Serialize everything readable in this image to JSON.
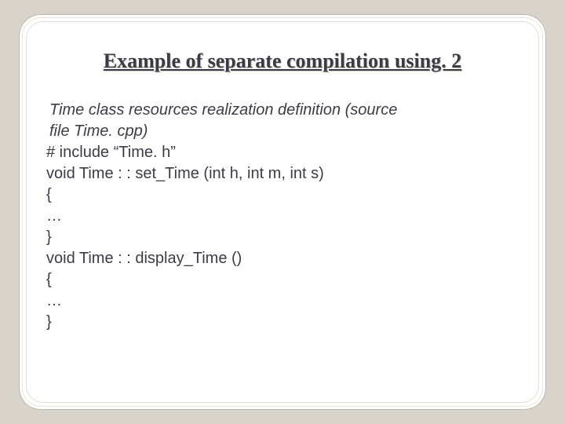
{
  "slide": {
    "title": "Example of separate compilation using. 2",
    "intro_line1": " Time class resources realization definition (source",
    "intro_line2": "  file Time. cpp)",
    "code_line1": "# include “Time. h”",
    "code_line2": "void Time : : set_Time (int h, int m, int s)",
    "code_line3": "{",
    "code_line4": "…",
    "code_line5": "}",
    "code_line6": "void Time : : display_Time ()",
    "code_line7": "{",
    "code_line8": "…",
    "code_line9": "}"
  },
  "style": {
    "page_bg": "#d9d4cb",
    "slide_bg": "#ffffff",
    "slide_border": "#bcb6ab",
    "text_color": "#3c3c48",
    "title_color": "#3b3b47",
    "title_fontsize": 26,
    "body_fontsize": 20,
    "slide_width": 672,
    "slide_height": 504,
    "border_radius": 28
  }
}
